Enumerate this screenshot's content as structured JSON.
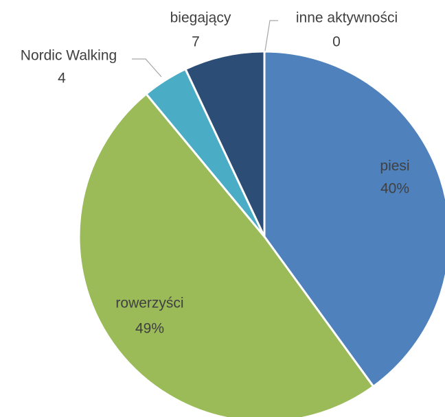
{
  "chart_data": {
    "type": "pie",
    "categories": [
      "piesi",
      "rowerzyści",
      "Nordic Walking",
      "biegający",
      "inne aktywności"
    ],
    "values": [
      40,
      49,
      4,
      7,
      0
    ],
    "value_labels": [
      "40%",
      "49%",
      "4",
      "7",
      "0"
    ],
    "colors": [
      "#4f81bd",
      "#9bbb59",
      "#4bacc6",
      "#2c4d75",
      "#f79646"
    ]
  }
}
